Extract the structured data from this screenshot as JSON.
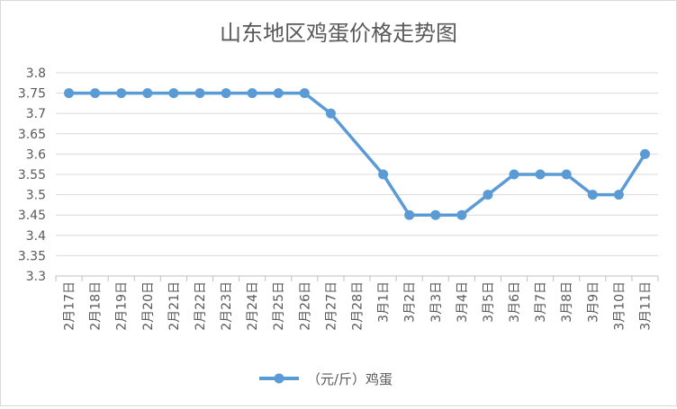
{
  "chart_data": {
    "type": "line",
    "title": "山东地区鸡蛋价格走势图",
    "xlabel": "",
    "ylabel": "",
    "categories": [
      "2月17日",
      "2月18日",
      "2月19日",
      "2月20日",
      "2月21日",
      "2月22日",
      "2月23日",
      "2月24日",
      "2月25日",
      "2月26日",
      "2月27日",
      "2月28日",
      "3月1日",
      "3月2日",
      "3月3日",
      "3月4日",
      "3月5日",
      "3月6日",
      "3月7日",
      "3月8日",
      "3月9日",
      "3月10日",
      "3月11日"
    ],
    "series": [
      {
        "name": "（元/斤）鸡蛋",
        "values": [
          3.75,
          3.75,
          3.75,
          3.75,
          3.75,
          3.75,
          3.75,
          3.75,
          3.75,
          3.75,
          3.7,
          null,
          3.55,
          3.45,
          3.45,
          3.45,
          3.5,
          3.55,
          3.55,
          3.55,
          3.5,
          3.5,
          3.6
        ],
        "color": "#5b9bd5"
      }
    ],
    "ylim": [
      3.3,
      3.8
    ],
    "yticks": [
      "3.3",
      "3.35",
      "3.4",
      "3.45",
      "3.5",
      "3.55",
      "3.6",
      "3.65",
      "3.7",
      "3.75",
      "3.8"
    ],
    "grid": true,
    "legend": "bottom"
  }
}
